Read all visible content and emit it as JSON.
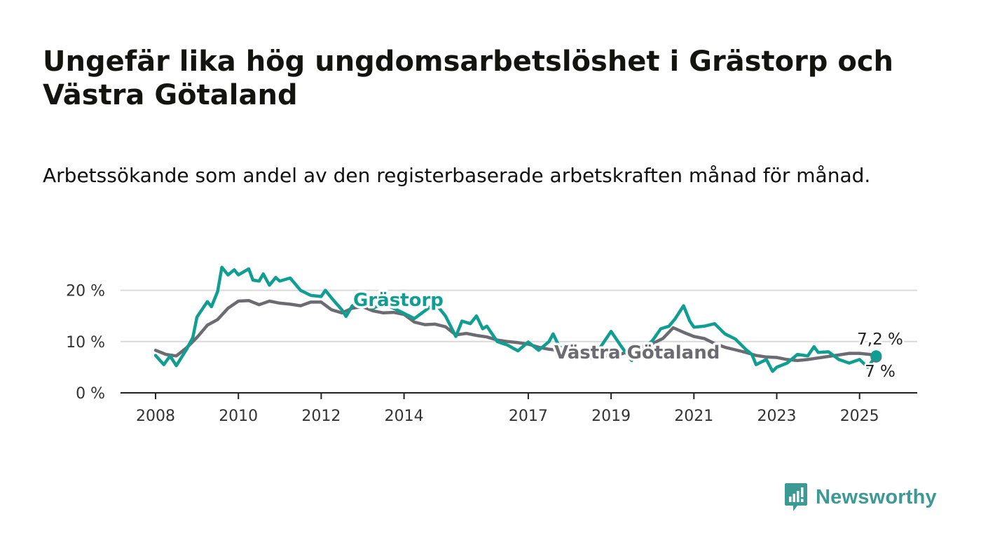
{
  "title": "Ungefär lika hög ungdomsarbetslöshet i Grästorp och Västra Götaland",
  "subtitle": "Arbetssökande som andel av den registerbaserade arbetskraften månad för månad.",
  "brand": {
    "name": "Newsworthy",
    "color": "#3c9a94",
    "icon": "newsworthy-logo-icon"
  },
  "colors": {
    "grastorp": "#0f9e91",
    "vastra": "#6b6b72",
    "grid": "#d9d9d9",
    "axis": "#222222"
  },
  "chart_data": {
    "type": "line",
    "x_unit": "year",
    "ylim": [
      0,
      25
    ],
    "yticks": [
      {
        "value": 0,
        "label": "0 %"
      },
      {
        "value": 10,
        "label": "10 %"
      },
      {
        "value": 20,
        "label": "20 %"
      }
    ],
    "xticks": [
      {
        "value": 2008,
        "label": "2008"
      },
      {
        "value": 2010,
        "label": "2010"
      },
      {
        "value": 2012,
        "label": "2012"
      },
      {
        "value": 2014,
        "label": "2014"
      },
      {
        "value": 2017,
        "label": "2017"
      },
      {
        "value": 2019,
        "label": "2019"
      },
      {
        "value": 2021,
        "label": "2021"
      },
      {
        "value": 2023,
        "label": "2023"
      },
      {
        "value": 2025,
        "label": "2025"
      }
    ],
    "grid": true,
    "series": [
      {
        "name": "Västra Götaland",
        "end_label": "7 %",
        "points": [
          [
            2008.0,
            8.3
          ],
          [
            2008.25,
            7.5
          ],
          [
            2008.5,
            7.2
          ],
          [
            2008.75,
            8.8
          ],
          [
            2009.0,
            10.8
          ],
          [
            2009.25,
            13.2
          ],
          [
            2009.5,
            14.3
          ],
          [
            2009.75,
            16.5
          ],
          [
            2010.0,
            17.9
          ],
          [
            2010.25,
            18.0
          ],
          [
            2010.5,
            17.2
          ],
          [
            2010.75,
            17.9
          ],
          [
            2011.0,
            17.5
          ],
          [
            2011.25,
            17.3
          ],
          [
            2011.5,
            17.0
          ],
          [
            2011.75,
            17.7
          ],
          [
            2012.0,
            17.7
          ],
          [
            2012.25,
            16.2
          ],
          [
            2012.5,
            15.6
          ],
          [
            2012.75,
            16.5
          ],
          [
            2013.0,
            16.8
          ],
          [
            2013.25,
            16.0
          ],
          [
            2013.5,
            15.6
          ],
          [
            2013.75,
            15.7
          ],
          [
            2014.0,
            15.3
          ],
          [
            2014.25,
            13.8
          ],
          [
            2014.5,
            13.3
          ],
          [
            2014.75,
            13.4
          ],
          [
            2015.0,
            12.9
          ],
          [
            2015.25,
            11.3
          ],
          [
            2015.5,
            11.6
          ],
          [
            2015.75,
            11.2
          ],
          [
            2016.0,
            10.9
          ],
          [
            2016.25,
            10.3
          ],
          [
            2016.5,
            10.0
          ],
          [
            2016.75,
            9.8
          ],
          [
            2017.0,
            9.5
          ],
          [
            2017.25,
            8.9
          ],
          [
            2017.5,
            8.5
          ],
          [
            2017.75,
            8.3
          ],
          [
            2018.0,
            7.6
          ],
          [
            2018.25,
            7.3
          ],
          [
            2018.5,
            7.0
          ],
          [
            2018.75,
            7.2
          ],
          [
            2019.0,
            7.3
          ],
          [
            2019.25,
            7.6
          ],
          [
            2019.5,
            8.3
          ],
          [
            2019.75,
            9.0
          ],
          [
            2020.0,
            9.6
          ],
          [
            2020.25,
            10.6
          ],
          [
            2020.5,
            12.7
          ],
          [
            2020.75,
            11.8
          ],
          [
            2021.0,
            11.0
          ],
          [
            2021.25,
            10.6
          ],
          [
            2021.5,
            9.6
          ],
          [
            2021.75,
            8.9
          ],
          [
            2022.0,
            8.4
          ],
          [
            2022.25,
            7.9
          ],
          [
            2022.5,
            7.3
          ],
          [
            2022.75,
            7.0
          ],
          [
            2023.0,
            6.9
          ],
          [
            2023.25,
            6.5
          ],
          [
            2023.5,
            6.3
          ],
          [
            2023.75,
            6.5
          ],
          [
            2024.0,
            6.8
          ],
          [
            2024.25,
            7.1
          ],
          [
            2024.5,
            7.4
          ],
          [
            2024.75,
            7.7
          ],
          [
            2025.0,
            7.7
          ],
          [
            2025.25,
            7.5
          ],
          [
            2025.4,
            7.0
          ]
        ]
      },
      {
        "name": "Grästorp",
        "end_label": "7,2 %",
        "points": [
          [
            2008.0,
            7.3
          ],
          [
            2008.2,
            5.5
          ],
          [
            2008.35,
            7.2
          ],
          [
            2008.5,
            5.3
          ],
          [
            2008.75,
            8.5
          ],
          [
            2008.9,
            10.8
          ],
          [
            2009.0,
            14.8
          ],
          [
            2009.25,
            17.8
          ],
          [
            2009.35,
            16.8
          ],
          [
            2009.5,
            19.8
          ],
          [
            2009.6,
            24.5
          ],
          [
            2009.75,
            23.0
          ],
          [
            2009.9,
            24.0
          ],
          [
            2010.0,
            23.0
          ],
          [
            2010.25,
            24.2
          ],
          [
            2010.35,
            22.0
          ],
          [
            2010.5,
            21.8
          ],
          [
            2010.6,
            23.2
          ],
          [
            2010.75,
            21.0
          ],
          [
            2010.9,
            22.5
          ],
          [
            2011.0,
            21.8
          ],
          [
            2011.25,
            22.4
          ],
          [
            2011.5,
            20.0
          ],
          [
            2011.75,
            19.0
          ],
          [
            2012.0,
            18.8
          ],
          [
            2012.1,
            20.0
          ],
          [
            2012.25,
            18.5
          ],
          [
            2012.5,
            16.2
          ],
          [
            2012.6,
            14.9
          ],
          [
            2012.75,
            17.0
          ],
          [
            2013.0,
            18.0
          ],
          [
            2013.25,
            16.5
          ],
          [
            2013.5,
            17.5
          ],
          [
            2013.75,
            16.5
          ],
          [
            2014.0,
            15.5
          ],
          [
            2014.25,
            14.5
          ],
          [
            2014.5,
            16.0
          ],
          [
            2014.75,
            17.5
          ],
          [
            2015.0,
            15.0
          ],
          [
            2015.25,
            11.0
          ],
          [
            2015.4,
            14.0
          ],
          [
            2015.6,
            13.5
          ],
          [
            2015.75,
            15.0
          ],
          [
            2015.9,
            12.5
          ],
          [
            2016.0,
            13.0
          ],
          [
            2016.25,
            10.0
          ],
          [
            2016.5,
            9.3
          ],
          [
            2016.75,
            8.2
          ],
          [
            2017.0,
            9.9
          ],
          [
            2017.25,
            8.3
          ],
          [
            2017.5,
            10.0
          ],
          [
            2017.6,
            11.5
          ],
          [
            2017.75,
            9.0
          ],
          [
            2018.0,
            8.0
          ],
          [
            2018.25,
            7.0
          ],
          [
            2018.5,
            6.8
          ],
          [
            2018.75,
            9.0
          ],
          [
            2019.0,
            12.0
          ],
          [
            2019.25,
            9.0
          ],
          [
            2019.5,
            6.3
          ],
          [
            2019.75,
            8.5
          ],
          [
            2020.0,
            10.2
          ],
          [
            2020.2,
            12.5
          ],
          [
            2020.4,
            13.0
          ],
          [
            2020.55,
            14.5
          ],
          [
            2020.75,
            17.0
          ],
          [
            2020.9,
            14.0
          ],
          [
            2021.0,
            12.8
          ],
          [
            2021.25,
            13.0
          ],
          [
            2021.5,
            13.5
          ],
          [
            2021.75,
            11.5
          ],
          [
            2022.0,
            10.5
          ],
          [
            2022.25,
            8.5
          ],
          [
            2022.4,
            7.5
          ],
          [
            2022.5,
            5.5
          ],
          [
            2022.75,
            6.5
          ],
          [
            2022.9,
            4.2
          ],
          [
            2023.0,
            5.0
          ],
          [
            2023.25,
            5.8
          ],
          [
            2023.5,
            7.5
          ],
          [
            2023.75,
            7.2
          ],
          [
            2023.9,
            9.0
          ],
          [
            2024.0,
            7.9
          ],
          [
            2024.25,
            8.0
          ],
          [
            2024.5,
            6.5
          ],
          [
            2024.75,
            5.8
          ],
          [
            2025.0,
            6.5
          ],
          [
            2025.2,
            5.0
          ],
          [
            2025.4,
            7.2
          ]
        ]
      }
    ]
  }
}
